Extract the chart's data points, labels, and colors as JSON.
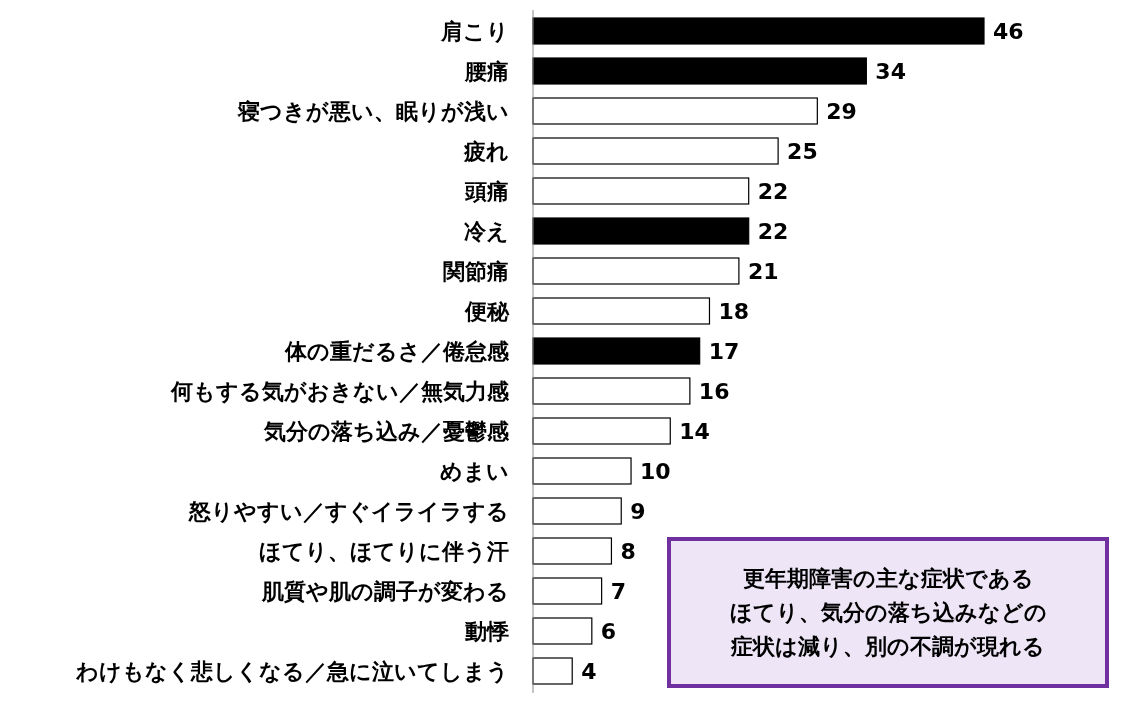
{
  "chart_data": {
    "type": "bar",
    "orientation": "horizontal",
    "data_labels": true,
    "categories": [
      "肩こり",
      "腰痛",
      "寝つきが悪い、眠りが浅い",
      "疲れ",
      "頭痛",
      "冷え",
      "関節痛",
      "便秘",
      "体の重だるさ／倦怠感",
      "何もする気がおきない／無気力感",
      "気分の落ち込み／憂鬱感",
      "めまい",
      "怒りやすい／すぐイライラする",
      "ほてり、ほてりに伴う汗",
      "肌質や肌の調子が変わる",
      "動悸",
      "わけもなく悲しくなる／急に泣いてしまう"
    ],
    "values": [
      46,
      34,
      29,
      25,
      22,
      22,
      21,
      18,
      17,
      16,
      14,
      10,
      9,
      8,
      7,
      6,
      4
    ],
    "colors": [
      "#000000",
      "#000000",
      "#ffffff",
      "#ffffff",
      "#ffffff",
      "#000000",
      "#ffffff",
      "#ffffff",
      "#000000",
      "#ffffff",
      "#ffffff",
      "#ffffff",
      "#ffffff",
      "#ffffff",
      "#ffffff",
      "#ffffff",
      "#ffffff"
    ],
    "annotations": [
      "更年期障害の主な症状である",
      "ほてり、気分の落ち込みなどの",
      "症状は減り、別の不調が現れる"
    ]
  }
}
